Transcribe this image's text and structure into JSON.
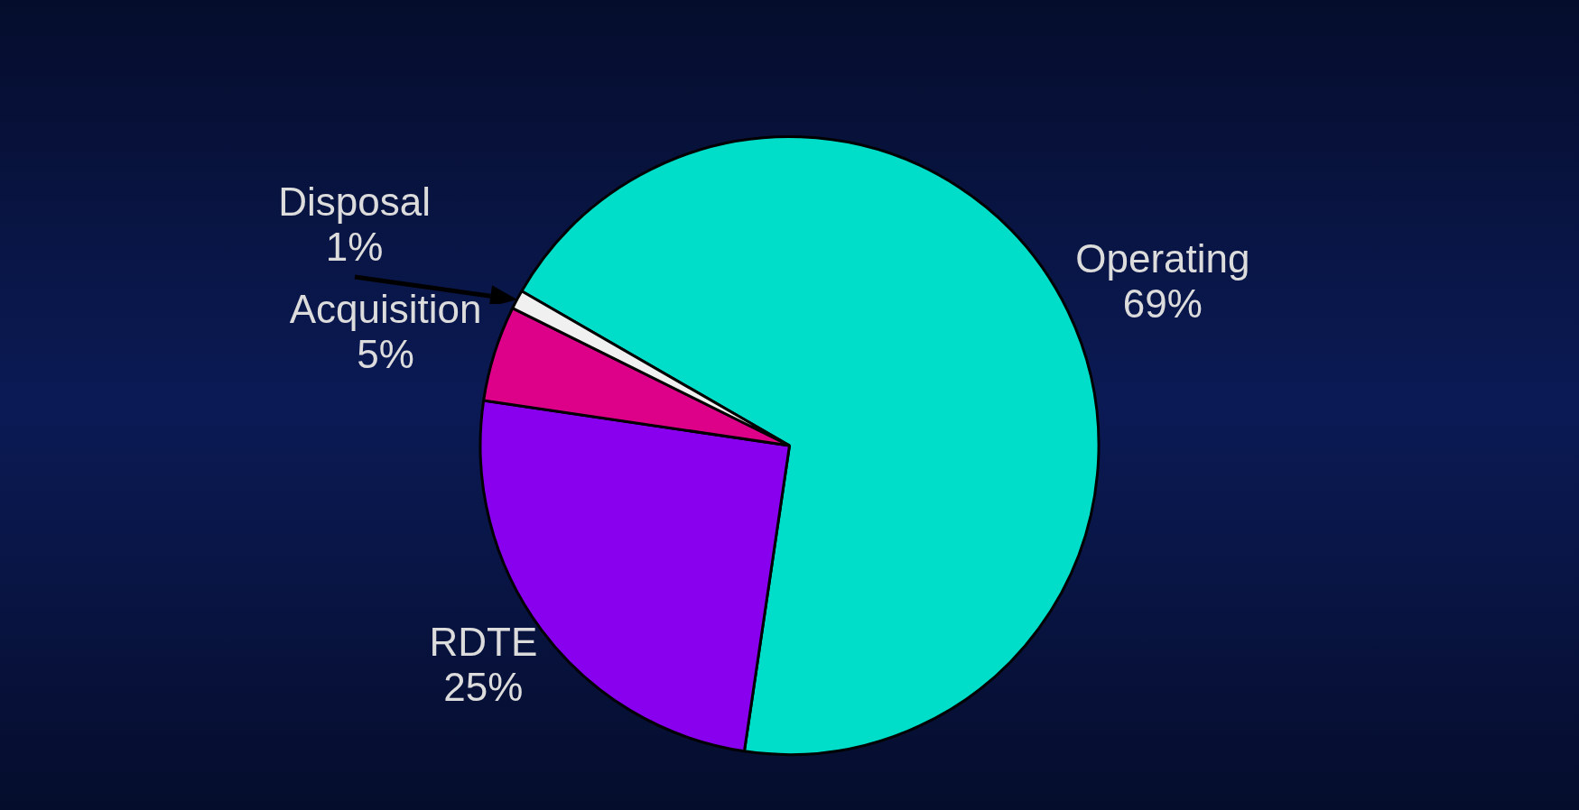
{
  "chart_data": {
    "type": "pie",
    "categories": [
      "Operating",
      "RDTE",
      "Acquisition",
      "Disposal"
    ],
    "values": [
      69,
      25,
      5,
      1
    ],
    "value_labels": [
      "69%",
      "25%",
      "5%",
      "1%"
    ],
    "colors": [
      "#00dec9",
      "#8800ee",
      "#dd0088",
      "#f0f0f0"
    ],
    "legend": false
  }
}
